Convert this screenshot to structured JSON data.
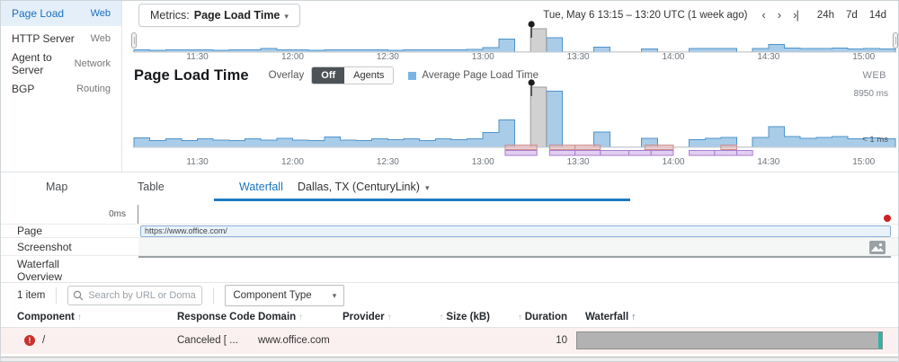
{
  "colors": {
    "accent": "#1b76c2",
    "chart_fill": "#a9cce8",
    "chart_stroke": "#4e94cc",
    "selection_fill": "#c9c9c9",
    "selection_stroke": "#9b9b9b",
    "alert_pink_fill": "#e8b4b4",
    "alert_pink_stroke": "#cc8f8f",
    "alert_purple_fill": "#cfaee6",
    "alert_purple_stroke": "#a87fd0",
    "legend_blue": "#79b5e2",
    "error_red": "#c9302c",
    "waterfall_gray": "#b2b2b2",
    "waterfall_teal": "#2cb5a8"
  },
  "sidebar": {
    "items": [
      {
        "label": "Page Load",
        "type": "Web",
        "active": true
      },
      {
        "label": "HTTP Server",
        "type": "Web",
        "active": false
      },
      {
        "label": "Agent to Server",
        "type": "Network",
        "active": false
      },
      {
        "label": "BGP",
        "type": "Routing",
        "active": false
      }
    ]
  },
  "toolbar": {
    "metrics_label": "Metrics:",
    "metrics_value": "Page Load Time",
    "date_range": "Tue, May 6 13:15 – 13:20 UTC (1 week ago)",
    "ranges": {
      "r24h": "24h",
      "r7d": "7d",
      "r14d": "14d"
    }
  },
  "section": {
    "title": "Page Load Time",
    "overlay_label": "Overlay",
    "overlay_off": "Off",
    "overlay_agents": "Agents",
    "legend": "Average Page Load Time",
    "badge": "WEB"
  },
  "chart_data": [
    {
      "type": "area",
      "name": "timeline-overview",
      "x_start": "11:10",
      "x_end": "15:10",
      "total_minutes": 240,
      "bucket_minutes": 5,
      "tick_minutes": [
        20,
        50,
        80,
        110,
        140,
        170,
        200,
        230
      ],
      "tick_labels": [
        "11:30",
        "12:00",
        "12:30",
        "13:00",
        "13:30",
        "14:00",
        "14:30",
        "15:00"
      ],
      "values": [
        0.1,
        0.08,
        0.09,
        0.1,
        0.09,
        0.08,
        0.1,
        0.09,
        0.15,
        0.1,
        0.09,
        0.08,
        0.1,
        0.09,
        0.1,
        0.09,
        0.08,
        0.1,
        0.09,
        0.1,
        0.09,
        0.11,
        0.2,
        0.55,
        0,
        0,
        0.62,
        0,
        0,
        0.22,
        0,
        0,
        0.13,
        0,
        0,
        0.15,
        0.15,
        0.16,
        0,
        0.16,
        0.32,
        0.18,
        0.15,
        0.16,
        0.17,
        0.14,
        0.16,
        0.14
      ],
      "selection": {
        "label": "13:15 – 13:20",
        "from_min": 125,
        "to_min": 130
      }
    },
    {
      "type": "area",
      "name": "page-load-time",
      "title": "Page Load Time",
      "ylabel": "Average Page Load Time",
      "y_max_ms": 8950,
      "y_max_label": "8950 ms",
      "y_min_label": "< 1 ms",
      "total_minutes": 240,
      "bucket_minutes": 5,
      "tick_minutes": [
        20,
        50,
        80,
        110,
        140,
        170,
        200,
        230
      ],
      "tick_labels": [
        "11:30",
        "12:00",
        "12:30",
        "13:00",
        "13:30",
        "14:00",
        "14:30",
        "15:00"
      ],
      "values_ms": [
        1430,
        1000,
        1250,
        1000,
        1270,
        1100,
        1000,
        1270,
        1100,
        1340,
        1100,
        1000,
        1560,
        1100,
        1000,
        1270,
        1120,
        1270,
        1030,
        1270,
        1120,
        1300,
        2200,
        4100,
        0,
        0,
        8350,
        0,
        0,
        2250,
        0,
        0,
        1350,
        0,
        0,
        1150,
        1350,
        1500,
        0,
        1500,
        3100,
        1600,
        1350,
        1500,
        1600,
        1250,
        1430,
        1270
      ],
      "selection": {
        "label": "13:15 – 13:20",
        "from_min": 125,
        "to_min": 130
      },
      "pink_segments": [
        [
          117,
          127
        ],
        [
          131,
          139
        ],
        [
          139,
          147
        ],
        [
          161,
          170
        ],
        [
          185,
          190
        ]
      ],
      "purple_segments": [
        [
          117,
          127
        ],
        [
          131,
          139
        ],
        [
          139,
          147
        ],
        [
          147,
          156
        ],
        [
          156,
          163
        ],
        [
          163,
          170
        ],
        [
          175,
          183
        ],
        [
          183,
          190
        ],
        [
          190,
          195
        ]
      ]
    }
  ],
  "waterfall": {
    "tabs": {
      "map": "Map",
      "table": "Table",
      "waterfall": "Waterfall"
    },
    "location": "Dallas, TX (CenturyLink)",
    "ruler_start": "0ms",
    "page_label": "Page",
    "page_url": "https://www.office.com/",
    "screenshot_label": "Screenshot",
    "overview_label": "Waterfall Overview"
  },
  "filter": {
    "item_count": "1 item",
    "search_placeholder": "Search by URL or Domain...",
    "component_type": "Component Type"
  },
  "table": {
    "columns": [
      {
        "label": "Component"
      },
      {
        "label": "Response Code"
      },
      {
        "label": "Domain"
      },
      {
        "label": "Provider"
      },
      {
        "label": "Size (kB)"
      },
      {
        "label": "Duration"
      },
      {
        "label": "Waterfall"
      }
    ],
    "rows": [
      {
        "component": "/",
        "response_code": "Canceled [ ...",
        "domain": "www.office.com",
        "provider": "",
        "size": "",
        "duration": "10",
        "has_error": true
      }
    ]
  }
}
